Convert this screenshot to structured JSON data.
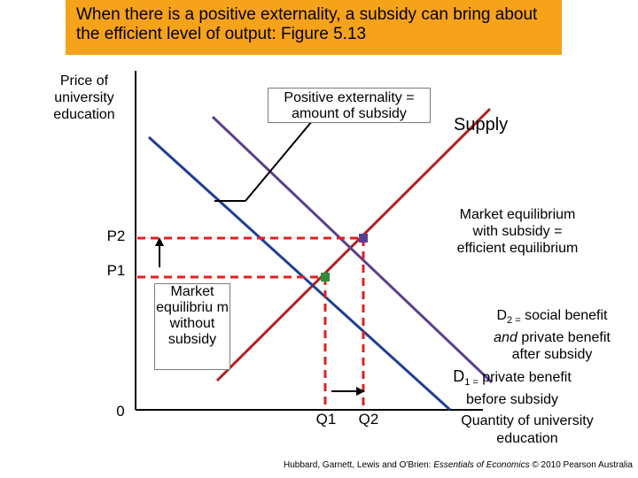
{
  "title": "When there is a positive externality, a subsidy can bring about the efficient level of output: Figure 5.13",
  "y_axis_label": "Price of university education",
  "x_axis_label": "Quantity of university education",
  "origin_label": "0",
  "price_labels": {
    "p2": "P2",
    "p1": "P1"
  },
  "quantity_labels": {
    "q1": "Q1",
    "q2": "Q2"
  },
  "annotations": {
    "externality_box": "Positive externality = amount of subsidy",
    "supply": "Supply",
    "market_with_subsidy": "Market equilibrium with subsidy = efficient equilibrium",
    "market_without_subsidy": "Market equilibriu m without subsidy",
    "d2_prefix": "D",
    "d2_sub": "2 =",
    "d2_rest": " social benefit ",
    "d2_and": "and",
    "d2_rest2": " private benefit after subsidy",
    "d1_prefix": "D",
    "d1_sub": "1 =",
    "d1_rest": " private benefit before subsidy"
  },
  "credit": {
    "prefix": "Hubbard, Garnett, Lewis and O'Brien: ",
    "book": "Essentials of Economics",
    "suffix": " © 2010 Pearson Australia"
  },
  "colors": {
    "title_bg": "#F7A21B",
    "supply": "#B52020",
    "d1": "#1F3F93",
    "d2": "#5B3F8E",
    "dashed": "#E02020",
    "equilibrium_point": "#2E8B3A"
  }
}
